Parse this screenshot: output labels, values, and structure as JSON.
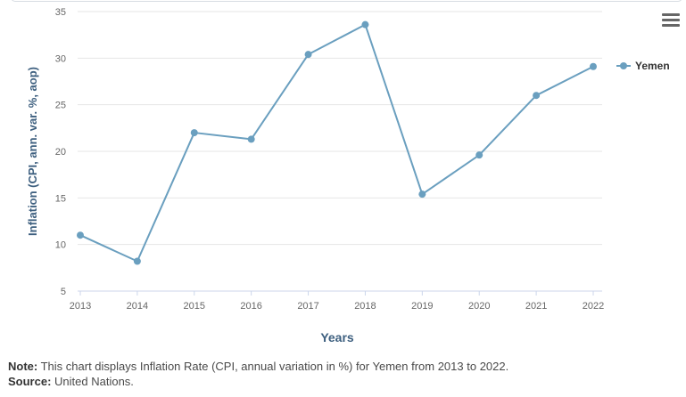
{
  "menu": {
    "icon": "hamburger-menu-icon"
  },
  "note": {
    "note_label": "Note:",
    "note_text": "This chart displays Inflation Rate (CPI, annual variation in %) for Yemen from 2013 to 2022.",
    "source_label": "Source:",
    "source_text": "United Nations."
  },
  "chart_data": {
    "type": "line",
    "xlabel": "Years",
    "ylabel": "Inflation (CPI, ann. var. %, aop)",
    "categories": [
      "2013",
      "2014",
      "2015",
      "2016",
      "2017",
      "2018",
      "2019",
      "2020",
      "2021",
      "2022"
    ],
    "series": [
      {
        "name": "Yemen",
        "values": [
          11.0,
          8.2,
          22.0,
          21.3,
          30.4,
          33.6,
          15.4,
          19.6,
          26.0,
          29.1
        ],
        "color": "#6a9fbf"
      }
    ],
    "yticks": [
      5,
      10,
      15,
      20,
      25,
      30,
      35
    ],
    "ylim": [
      5,
      35
    ],
    "grid": true,
    "legend": "right",
    "axis_title_color": "#3d5f7f",
    "tick_color": "#666666",
    "grid_color": "#e6e6e6",
    "axis_line_color": "#ccd6eb"
  }
}
